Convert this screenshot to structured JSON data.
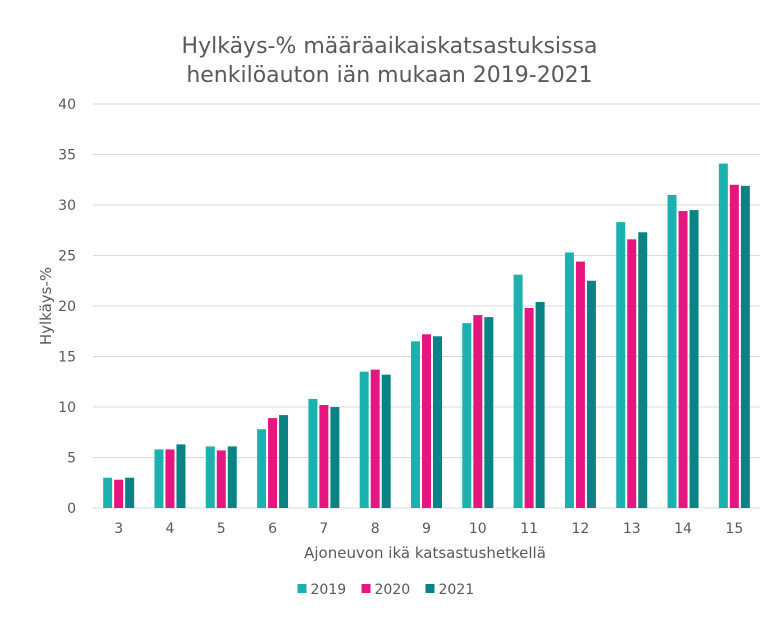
{
  "chart_data": {
    "type": "bar",
    "title": [
      "Hylkäys-% määräaikaiskatsastuksissa",
      "henkilöauton iän mukaan 2019-2021"
    ],
    "xlabel": "Ajoneuvon ikä katsastushetkellä",
    "ylabel": "Hylkäys-%",
    "ylim": [
      0,
      40
    ],
    "yticks": [
      0,
      5,
      10,
      15,
      20,
      25,
      30,
      35,
      40
    ],
    "grid": true,
    "legend_position": "bottom",
    "categories": [
      "3",
      "4",
      "5",
      "6",
      "7",
      "8",
      "9",
      "10",
      "11",
      "12",
      "13",
      "14",
      "15"
    ],
    "series": [
      {
        "name": "2019",
        "color": "#1bb1ae",
        "values": [
          3.0,
          5.8,
          6.1,
          7.8,
          10.8,
          13.5,
          16.5,
          18.3,
          23.1,
          25.3,
          28.3,
          31.0,
          34.1
        ]
      },
      {
        "name": "2020",
        "color": "#e6157f",
        "values": [
          2.8,
          5.8,
          5.7,
          8.9,
          10.2,
          13.7,
          17.2,
          19.1,
          19.8,
          24.4,
          26.6,
          29.4,
          32.0
        ]
      },
      {
        "name": "2021",
        "color": "#0b8385",
        "values": [
          3.0,
          6.3,
          6.1,
          9.2,
          10.0,
          13.2,
          17.0,
          18.9,
          20.4,
          22.5,
          27.3,
          29.5,
          31.9
        ]
      }
    ]
  }
}
